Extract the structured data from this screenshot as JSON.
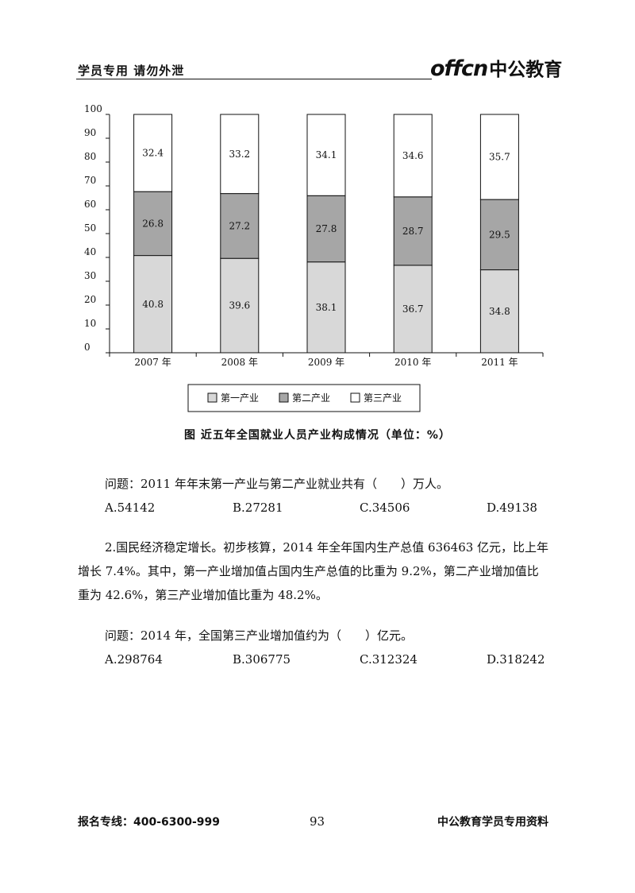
{
  "header": {
    "left_text": "学员专用 请勿外泄",
    "logo_en": "offcn",
    "logo_cn": "中公教育",
    "logo_color": "#1a1a1a"
  },
  "chart_data": {
    "type": "bar",
    "stacked": true,
    "categories": [
      "2007 年",
      "2008 年",
      "2009 年",
      "2010 年",
      "2011 年"
    ],
    "series": [
      {
        "name": "第一产业",
        "values": [
          40.8,
          39.6,
          38.1,
          36.7,
          34.8
        ],
        "color": "#d8d8d8"
      },
      {
        "name": "第二产业",
        "values": [
          26.8,
          27.2,
          27.8,
          28.7,
          29.5
        ],
        "color": "#a6a6a6"
      },
      {
        "name": "第三产业",
        "values": [
          32.4,
          33.2,
          34.1,
          34.6,
          35.7
        ],
        "color": "#ffffff"
      }
    ],
    "ylim": [
      0,
      100
    ],
    "yticks": [
      0,
      10,
      20,
      30,
      40,
      50,
      60,
      70,
      80,
      90,
      100
    ],
    "legend_position": "bottom",
    "grid": false,
    "title": "图 近五年全国就业人员产业构成情况（单位：%）"
  },
  "questions": [
    {
      "question": "问题：2011 年年末第一产业与第二产业就业共有（　　）万人。",
      "options": [
        "A.54142",
        "B.27281",
        "C.34506",
        "D.49138"
      ]
    },
    {
      "paragraph_lines": [
        "2.国民经济稳定增长。初步核算，2014 年全年国内生产总值 636463 亿元，比上年",
        "增长 7.4%。其中，第一产业增加值占国内生产总值的比重为 9.2%，第二产业增加值比",
        "重为 42.6%，第三产业增加值比重为 48.2%。"
      ],
      "question": "问题：2014 年，全国第三产业增加值约为（　　）亿元。",
      "options": [
        "A.298764",
        "B.306775",
        "C.312324",
        "D.318242"
      ]
    }
  ],
  "footer": {
    "hotline": "报名专线：400-6300-999",
    "page_number": "93",
    "right_text": "中公教育学员专用资料"
  }
}
